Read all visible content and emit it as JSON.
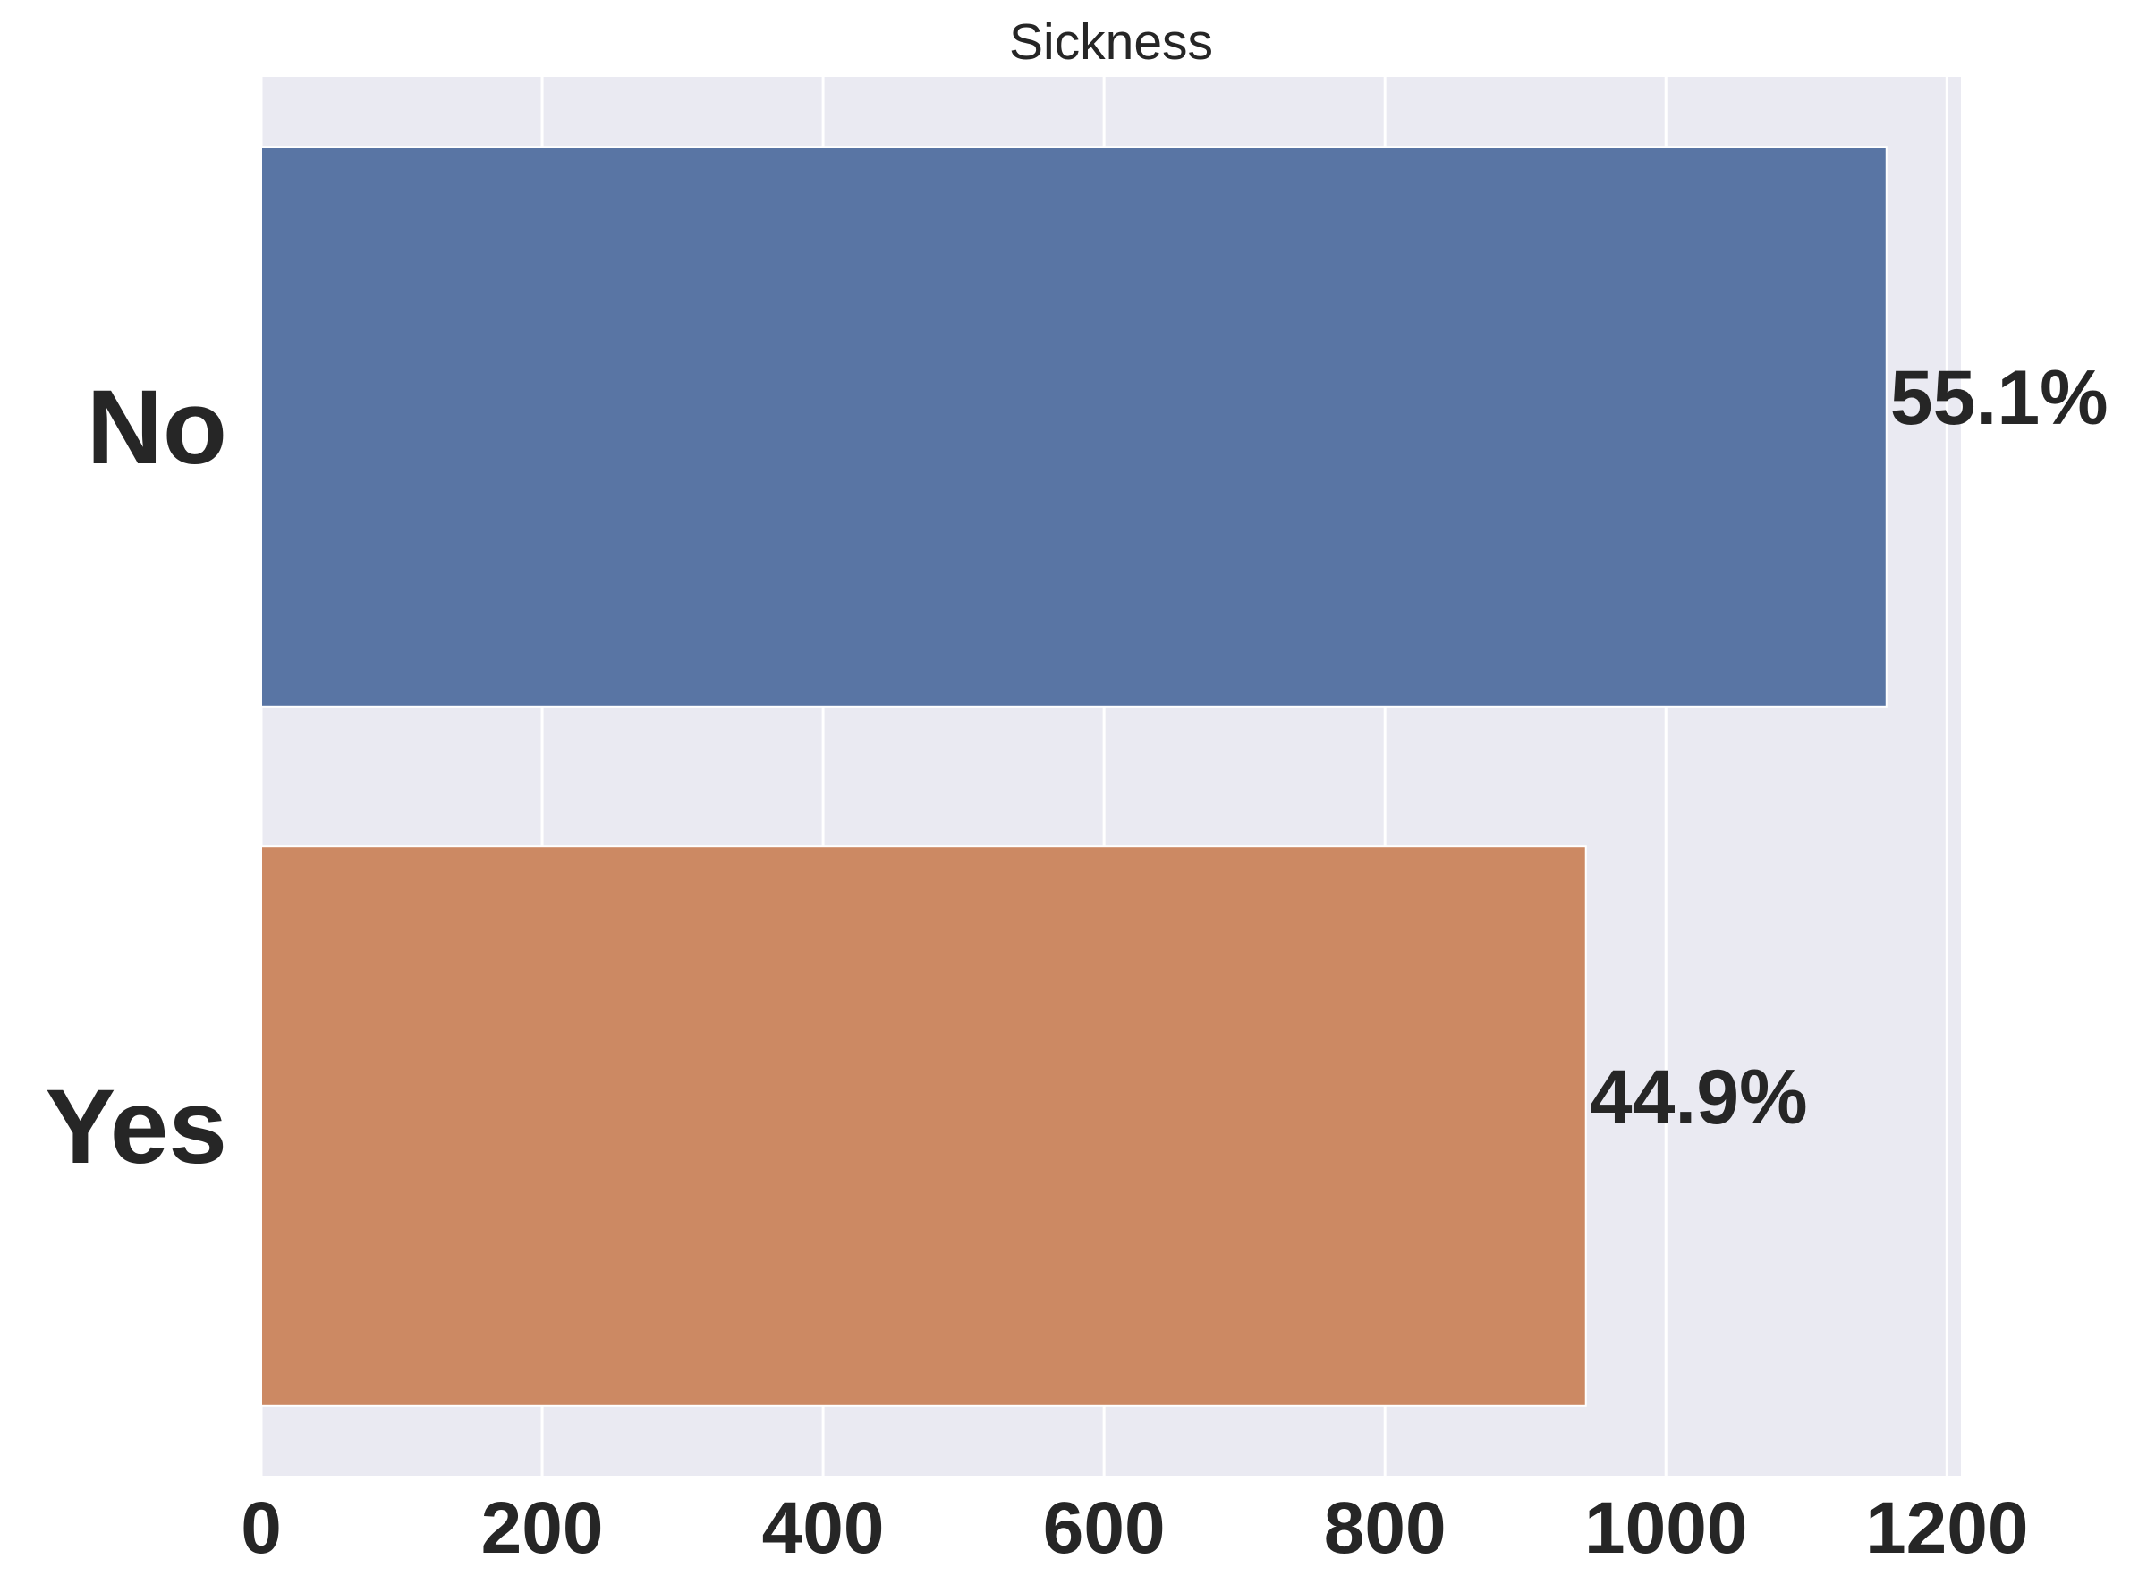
{
  "chart_data": {
    "type": "bar",
    "orientation": "horizontal",
    "title": "Sickness",
    "xlabel": "",
    "ylabel": "",
    "categories": [
      "No",
      "Yes"
    ],
    "values": [
      1157,
      943
    ],
    "data_labels": [
      "55.1%",
      "44.9%"
    ],
    "xlim": [
      0,
      1210
    ],
    "xticks": [
      0,
      200,
      400,
      600,
      800,
      1000,
      1200
    ],
    "xtick_labels": [
      "0",
      "200",
      "400",
      "600",
      "800",
      "1000",
      "1200"
    ],
    "grid": true,
    "legend": "none",
    "colors": {
      "plot_background": "#EAEAF2",
      "gridline": "#FFFFFF",
      "bars": [
        "#5975A4",
        "#CC8963"
      ],
      "text": "#262626"
    }
  }
}
